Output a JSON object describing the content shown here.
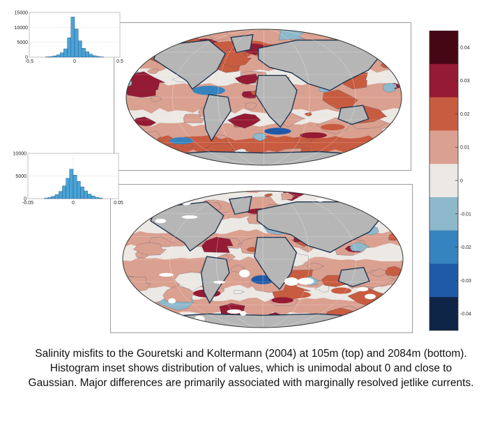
{
  "chart_data": [
    {
      "type": "heatmap",
      "panel": "top",
      "title": "",
      "description_depth_m": 105,
      "colormap_colors": [
        "#0e2447",
        "#1f5aa8",
        "#3684bf",
        "#8eb8cb",
        "#ece8e4",
        "#daa090",
        "#c85c40",
        "#951a33",
        "#460715"
      ]
    },
    {
      "type": "bar",
      "panel": "top-histogram",
      "xlim": [
        -0.5,
        0.5
      ],
      "ylim": [
        0,
        15000
      ],
      "xticks": [
        "-0.5",
        "0",
        "0.5"
      ],
      "yticks": [
        "0",
        "5000",
        "10000",
        "15000"
      ],
      "bins_x": [
        -0.3,
        -0.26,
        -0.22,
        -0.18,
        -0.14,
        -0.1,
        -0.06,
        -0.02,
        0.02,
        0.06,
        0.1,
        0.14,
        0.18,
        0.22,
        0.26,
        0.3
      ],
      "values": [
        100,
        200,
        450,
        800,
        1500,
        2800,
        6500,
        13500,
        9500,
        5500,
        3000,
        1800,
        1000,
        500,
        250,
        100
      ]
    },
    {
      "type": "heatmap",
      "panel": "bottom",
      "title": "",
      "description_depth_m": 2084
    },
    {
      "type": "bar",
      "panel": "bottom-histogram",
      "xlim": [
        -0.05,
        0.05
      ],
      "ylim": [
        0,
        10000
      ],
      "xticks": [
        "-0.05",
        "0",
        "0.05"
      ],
      "yticks": [
        "0",
        "5000",
        "10000"
      ],
      "bins_x": [
        -0.03,
        -0.026,
        -0.022,
        -0.018,
        -0.014,
        -0.01,
        -0.006,
        -0.002,
        0.002,
        0.006,
        0.01,
        0.014,
        0.018,
        0.022,
        0.026,
        0.03
      ],
      "values": [
        100,
        250,
        500,
        900,
        1600,
        2800,
        4500,
        6500,
        5200,
        3800,
        2600,
        1700,
        1000,
        600,
        300,
        150
      ]
    },
    {
      "type": "colorbar",
      "ticks": [
        "0.04",
        "0.03",
        "0.02",
        "0.01",
        "0",
        "-0.01",
        "-0.02",
        "-0.03",
        "-0.04"
      ],
      "tick_values": [
        0.04,
        0.03,
        0.02,
        0.01,
        0,
        -0.01,
        -0.02,
        -0.03,
        -0.04
      ],
      "range": [
        -0.045,
        0.045
      ],
      "colors": [
        "#460715",
        "#951a33",
        "#c85c40",
        "#daa090",
        "#ece8e4",
        "#8eb8cb",
        "#3684bf",
        "#1f5aa8",
        "#0e2447"
      ]
    }
  ],
  "colors": {
    "land": "#b6b6b6",
    "coast": "#1e3550",
    "hist_bar": "#4aa3d6",
    "sea_ice": "#ffffff"
  },
  "caption": "Salinity misfits to the Gouretski and Koltermann (2004) at 105m (top) and 2084m (bottom). Histogram inset shows distribution of values, which is unimodal about 0 and close to Gaussian. Major differences are primarily associated with marginally resolved jetlike currents."
}
